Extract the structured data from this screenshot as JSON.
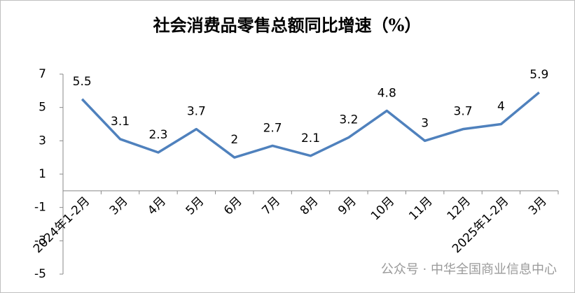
{
  "chart_data": {
    "type": "line",
    "title": "社会消费品零售总额同比增速（%）",
    "categories": [
      "2024年1-2月",
      "3月",
      "4月",
      "5月",
      "6月",
      "7月",
      "8月",
      "9月",
      "10月",
      "11月",
      "12月",
      "2025年1-2月",
      "3月"
    ],
    "values": [
      5.5,
      3.1,
      2.3,
      3.7,
      2,
      2.7,
      2.1,
      3.2,
      4.8,
      3,
      3.7,
      4,
      5.9
    ],
    "color": "#4f81bd",
    "ylim": [
      -5,
      7
    ],
    "yticks": [
      -5,
      -3,
      -1,
      1,
      3,
      5,
      7
    ],
    "grid": false,
    "watermark": "公众号 · 中华全国商业信息中心"
  }
}
